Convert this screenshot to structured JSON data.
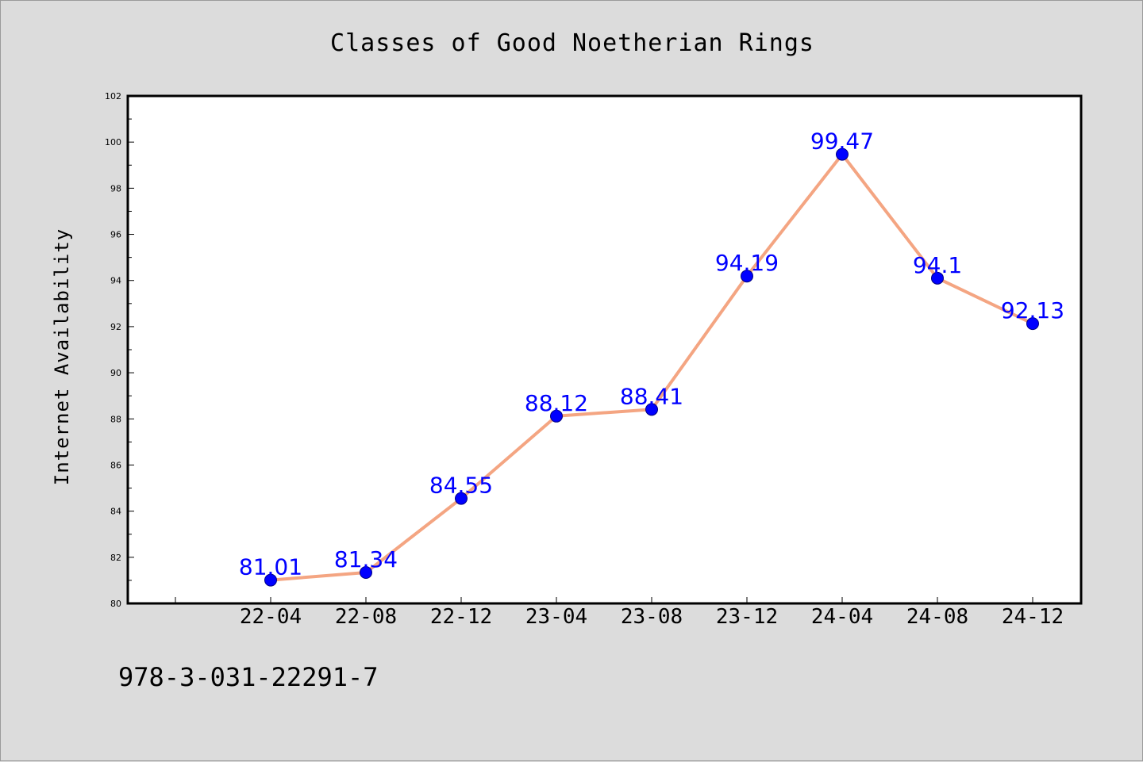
{
  "chart_data": {
    "type": "line",
    "title": "Classes of Good Noetherian Rings",
    "xlabel": "",
    "ylabel": "Internet Availability",
    "categories": [
      "22-04",
      "22-08",
      "22-12",
      "23-04",
      "23-08",
      "23-12",
      "24-04",
      "24-08",
      "24-12"
    ],
    "series": [
      {
        "values": [
          81.01,
          81.34,
          84.55,
          88.12,
          88.41,
          94.19,
          99.47,
          94.1,
          92.13
        ],
        "data_labels": [
          "81.01",
          "81.34",
          "84.55",
          "88.12",
          "88.41",
          "94.19",
          "99.47",
          "94.1",
          "92.13"
        ]
      }
    ],
    "ylim": [
      80,
      102
    ],
    "y_ticks": [
      "80",
      "82",
      "84",
      "86",
      "88",
      "90",
      "92",
      "94",
      "96",
      "98",
      "100",
      "102"
    ],
    "grid": false,
    "legend": "none"
  },
  "footer": {
    "isbn": "978-3-031-22291-7"
  },
  "colors": {
    "background": "#dcdcdc",
    "plot_background": "#ffffff",
    "line": "#f4a582",
    "marker": "#0000ff",
    "data_label": "#0000ff",
    "axis": "#000000"
  }
}
